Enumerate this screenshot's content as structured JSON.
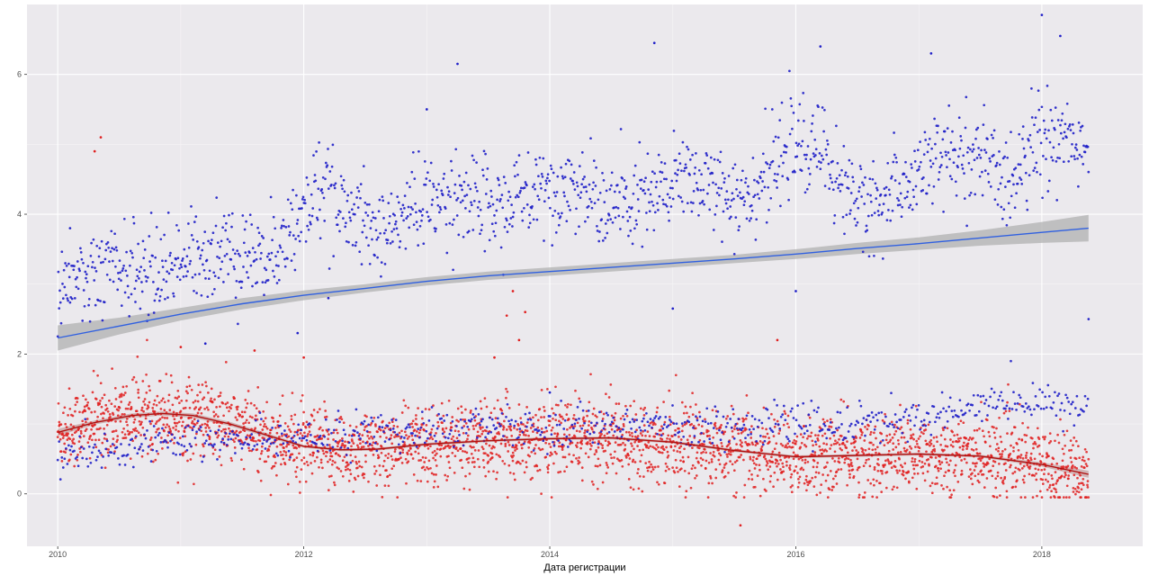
{
  "chart_data": {
    "type": "scatter",
    "title": "",
    "xlabel": "Дата регистрации",
    "ylabel": "",
    "xlim": [
      2009.75,
      2018.82
    ],
    "ylim": [
      -0.75,
      7.0
    ],
    "x_ticks": [
      2010,
      2012,
      2014,
      2016,
      2018
    ],
    "x_tick_labels": [
      "2010",
      "2012",
      "2014",
      "2016",
      "2018"
    ],
    "y_ticks": [
      0,
      2,
      4,
      6
    ],
    "y_tick_labels": [
      "0",
      "2",
      "4",
      "6"
    ],
    "grid": true,
    "panel_background": "#ebe9ed",
    "legend": "none",
    "series": [
      {
        "kind": "points",
        "color": "#2020c8",
        "trend_anchors": [
          [
            2010.0,
            3.0
          ],
          [
            2010.4,
            3.1
          ],
          [
            2010.7,
            3.2
          ],
          [
            2011.0,
            3.35
          ],
          [
            2011.3,
            3.5
          ],
          [
            2011.6,
            3.4
          ],
          [
            2011.9,
            3.7
          ],
          [
            2012.1,
            4.35
          ],
          [
            2012.4,
            4.0
          ],
          [
            2012.6,
            3.7
          ],
          [
            2012.8,
            3.9
          ],
          [
            2013.0,
            4.2
          ],
          [
            2013.3,
            4.25
          ],
          [
            2013.6,
            4.05
          ],
          [
            2013.9,
            4.4
          ],
          [
            2014.2,
            4.4
          ],
          [
            2014.5,
            4.1
          ],
          [
            2014.8,
            4.2
          ],
          [
            2015.1,
            4.55
          ],
          [
            2015.4,
            4.3
          ],
          [
            2015.7,
            4.4
          ],
          [
            2015.95,
            5.0
          ],
          [
            2016.2,
            4.9
          ],
          [
            2016.4,
            4.3
          ],
          [
            2016.7,
            4.15
          ],
          [
            2016.95,
            4.45
          ],
          [
            2017.2,
            4.8
          ],
          [
            2017.5,
            4.85
          ],
          [
            2017.7,
            4.4
          ],
          [
            2017.9,
            5.0
          ],
          [
            2018.2,
            5.15
          ],
          [
            2018.38,
            4.7
          ]
        ],
        "spread": 0.33,
        "lower_band_anchors": [
          [
            2010.0,
            0.5
          ],
          [
            2010.5,
            0.65
          ],
          [
            2011.0,
            0.75
          ],
          [
            2011.5,
            0.8
          ],
          [
            2012.0,
            0.8
          ],
          [
            2013.0,
            0.95
          ],
          [
            2014.0,
            0.95
          ],
          [
            2014.5,
            0.95
          ],
          [
            2015.0,
            0.95
          ],
          [
            2015.5,
            0.95
          ],
          [
            2016.0,
            1.0
          ],
          [
            2016.5,
            1.0
          ],
          [
            2017.0,
            1.1
          ],
          [
            2017.5,
            1.25
          ],
          [
            2018.0,
            1.35
          ],
          [
            2018.38,
            1.2
          ]
        ],
        "lower_spread": 0.14,
        "outliers": [
          [
            2018.0,
            6.85
          ],
          [
            2016.2,
            6.4
          ],
          [
            2014.0,
            1.45
          ],
          [
            2013.0,
            5.5
          ],
          [
            2018.15,
            6.55
          ],
          [
            2017.1,
            6.3
          ],
          [
            2014.85,
            6.45
          ],
          [
            2013.25,
            6.15
          ],
          [
            2016.0,
            2.9
          ],
          [
            2015.0,
            2.65
          ],
          [
            2018.38,
            2.5
          ],
          [
            2011.95,
            2.3
          ],
          [
            2011.2,
            2.15
          ],
          [
            2010.1,
            3.8
          ],
          [
            2012.2,
            2.8
          ]
        ]
      },
      {
        "kind": "points",
        "color": "#e02020",
        "mid_anchors": [
          [
            2010.0,
            0.9
          ],
          [
            2010.5,
            1.1
          ],
          [
            2010.85,
            1.15
          ],
          [
            2011.2,
            1.05
          ],
          [
            2011.6,
            0.85
          ],
          [
            2012.0,
            0.65
          ],
          [
            2012.5,
            0.62
          ],
          [
            2013.0,
            0.72
          ],
          [
            2013.5,
            0.75
          ],
          [
            2014.0,
            0.8
          ],
          [
            2014.5,
            0.8
          ],
          [
            2015.0,
            0.75
          ],
          [
            2015.5,
            0.62
          ],
          [
            2016.0,
            0.55
          ],
          [
            2016.5,
            0.55
          ],
          [
            2017.0,
            0.55
          ],
          [
            2017.5,
            0.55
          ],
          [
            2018.0,
            0.42
          ],
          [
            2018.38,
            0.28
          ]
        ],
        "spread": 0.33,
        "outliers": [
          [
            2010.35,
            5.1
          ],
          [
            2010.3,
            4.9
          ],
          [
            2013.7,
            2.9
          ],
          [
            2013.65,
            2.55
          ],
          [
            2013.8,
            2.6
          ],
          [
            2013.75,
            2.2
          ],
          [
            2015.85,
            2.2
          ],
          [
            2013.55,
            1.95
          ],
          [
            2015.55,
            -0.45
          ],
          [
            2011.0,
            2.1
          ],
          [
            2012.0,
            1.95
          ],
          [
            2011.6,
            2.05
          ]
        ]
      }
    ],
    "trend_lines": [
      {
        "name": "",
        "color": "#3060e0",
        "band_color": "#b0b0b0",
        "points": [
          [
            2010.0,
            2.23
          ],
          [
            2010.5,
            2.4
          ],
          [
            2011.0,
            2.57
          ],
          [
            2011.5,
            2.72
          ],
          [
            2012.0,
            2.84
          ],
          [
            2012.5,
            2.94
          ],
          [
            2013.0,
            3.04
          ],
          [
            2013.5,
            3.12
          ],
          [
            2014.0,
            3.18
          ],
          [
            2014.5,
            3.24
          ],
          [
            2015.0,
            3.3
          ],
          [
            2015.5,
            3.36
          ],
          [
            2016.0,
            3.43
          ],
          [
            2016.5,
            3.51
          ],
          [
            2017.0,
            3.58
          ],
          [
            2017.5,
            3.66
          ],
          [
            2018.0,
            3.74
          ],
          [
            2018.38,
            3.8
          ]
        ],
        "band_halfwidth": [
          0.18,
          0.12,
          0.09,
          0.08,
          0.07,
          0.06,
          0.06,
          0.06,
          0.06,
          0.06,
          0.06,
          0.06,
          0.07,
          0.08,
          0.09,
          0.11,
          0.15,
          0.19
        ]
      },
      {
        "name": "",
        "color": "#b01010",
        "band_color": "#c8a0a0",
        "points": [
          [
            2010.0,
            0.88
          ],
          [
            2010.3,
            1.02
          ],
          [
            2010.6,
            1.12
          ],
          [
            2010.85,
            1.15
          ],
          [
            2011.1,
            1.12
          ],
          [
            2011.4,
            1.0
          ],
          [
            2011.7,
            0.84
          ],
          [
            2012.0,
            0.68
          ],
          [
            2012.3,
            0.63
          ],
          [
            2012.6,
            0.64
          ],
          [
            2013.0,
            0.71
          ],
          [
            2013.5,
            0.76
          ],
          [
            2014.0,
            0.79
          ],
          [
            2014.5,
            0.8
          ],
          [
            2015.0,
            0.74
          ],
          [
            2015.5,
            0.62
          ],
          [
            2016.0,
            0.53
          ],
          [
            2016.5,
            0.55
          ],
          [
            2017.0,
            0.57
          ],
          [
            2017.5,
            0.54
          ],
          [
            2018.0,
            0.42
          ],
          [
            2018.38,
            0.28
          ]
        ],
        "band_halfwidth": [
          0.05,
          0.03,
          0.03,
          0.03,
          0.03,
          0.03,
          0.03,
          0.02,
          0.02,
          0.02,
          0.02,
          0.02,
          0.02,
          0.02,
          0.02,
          0.02,
          0.02,
          0.02,
          0.02,
          0.02,
          0.03,
          0.05
        ]
      }
    ]
  }
}
